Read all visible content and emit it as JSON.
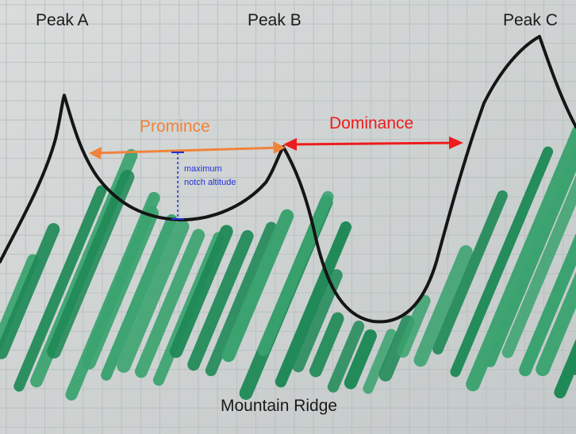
{
  "peaks": [
    {
      "label": "Peak A"
    },
    {
      "label": "Peak B"
    },
    {
      "label": "Peak C"
    }
  ],
  "measures": {
    "prominence_label": "Promince",
    "dominance_label": "Dominance",
    "notch_label_line1": "maximum",
    "notch_label_line2": "notch altitude"
  },
  "caption": "Mountain Ridge",
  "colors": {
    "paper": "#d3d7d6",
    "grid": "#b6bcbc",
    "ridge_line": "#151515",
    "forest": "#1f8a57",
    "forest_light": "#3aa36f",
    "prominence": "#f0833c",
    "dominance": "#ee1c1c",
    "notch": "#2230d8",
    "text": "#1a1a1a"
  }
}
